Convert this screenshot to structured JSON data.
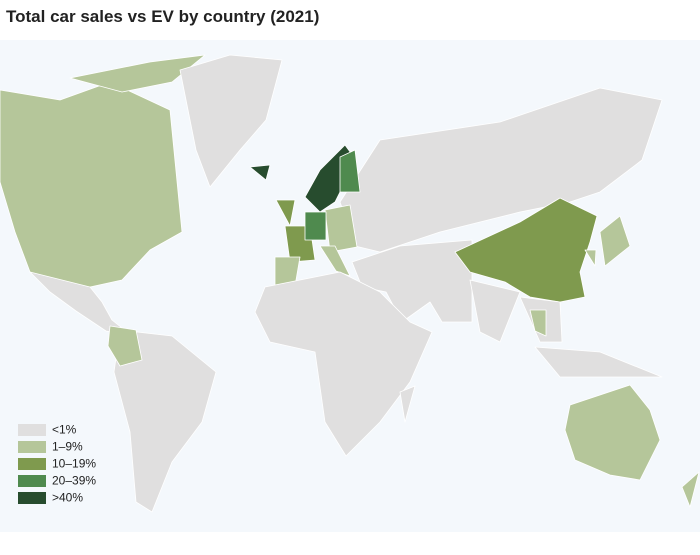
{
  "title": "Total car sales vs EV by country (2021)",
  "legend": [
    {
      "label": "<1%",
      "color": "#e0dfdf"
    },
    {
      "label": "1–9%",
      "color": "#b5c69a"
    },
    {
      "label": "10–19%",
      "color": "#7f9a4e"
    },
    {
      "label": "20–39%",
      "color": "#4f8a4e"
    },
    {
      "label": ">40%",
      "color": "#274c2e"
    }
  ]
}
